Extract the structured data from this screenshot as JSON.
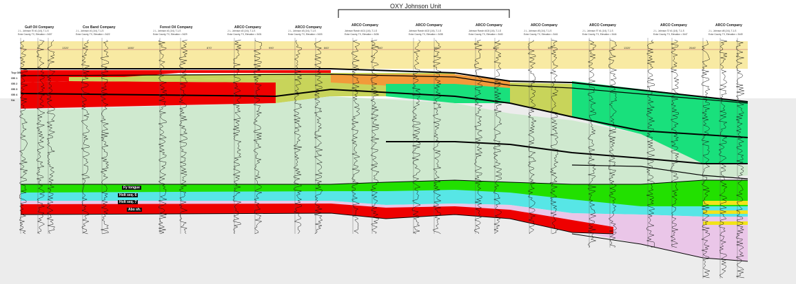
{
  "unit_label": "OXY Johnson Unit",
  "companies": [
    {
      "name": "Gulf Oil Company",
      "sub": [
        "J. L. Johnson 'B' #1 (1/4), T-1-S",
        "Ector County, TX, Elevation = 3437"
      ]
    },
    {
      "name": "Cox Band Company",
      "sub": [
        "J. L. Johnson #1 (1/4), T-1-S",
        "Ector County, TX, Elevation = 3422"
      ]
    },
    {
      "name": "Forest Oil Company",
      "sub": [
        "J. L. Johnson #1 (1/4), T-1-S",
        "Ector County, TX, Elevation = 3429"
      ]
    },
    {
      "name": "ARCO Company",
      "sub": [
        "J. L. Johnson #2 (1/4), T-1-S",
        "Ector County, TX, Elevation = 3431"
      ]
    },
    {
      "name": "ARCO Company",
      "sub": [
        "J. L. Johnson #3 (1/4), T-1-S",
        "Ector County, TX, Elevation = 3433"
      ]
    },
    {
      "name": "ARCO Company",
      "sub": [
        "Johnson Ranch #101 (1/4), T-1-S",
        "Ector County, TX, Elevation = 3436"
      ]
    },
    {
      "name": "ARCO Company",
      "sub": [
        "Johnson Ranch #102 (1/4), T-1-S",
        "Ector County, TX, Elevation = 3438"
      ]
    },
    {
      "name": "ARCO Company",
      "sub": [
        "Johnson Ranch #103 (1/4), T-1-S",
        "Ector County, TX, Elevation = 3440"
      ]
    },
    {
      "name": "ARCO Company",
      "sub": [
        "J. L. Johnson #5 (1/4), T-1-S",
        "Ector County, TX, Elevation = 3441"
      ]
    },
    {
      "name": "ARCO Company",
      "sub": [
        "J. L. Johnson 'E' #1 (1/4), T-1-S",
        "Ector County, TX, Elevation = 3444"
      ]
    },
    {
      "name": "ARCO Company",
      "sub": [
        "J. L. Johnson 'D' #1 (1/4), T-1-S",
        "Ector County, TX, Elevation = 3447"
      ]
    },
    {
      "name": "ARCO Company",
      "sub": [
        "J. L. Johnson #8 (1/4), T-1-S",
        "Ector County, TX, Elevation = 3449"
      ]
    }
  ],
  "distances": [
    "1320'",
    "1650'",
    "870'",
    "990'",
    "660'",
    "660'",
    "880'",
    "1100'",
    "660'",
    "1320'",
    "2640'"
  ],
  "zone_labels": [
    "Fy tongue",
    "Holt seq. 6",
    "Holt seq. 7",
    "Abo sh."
  ],
  "datum_labels": [
    "Top GB",
    "GB 1",
    "GB 2",
    "GB 3",
    "GB 4",
    "SA"
  ],
  "colors": {
    "yellow": "#f8eaa3",
    "red": "#ee0000",
    "olive": "#c8d45a",
    "orange": "#f29a3a",
    "green": "#19e07c",
    "lightgreen": "#cfe9cf",
    "bandgreen": "#22e000",
    "cyan": "#57e6e6",
    "pink": "#eac6e8",
    "yellowband": "#f2e31a"
  }
}
